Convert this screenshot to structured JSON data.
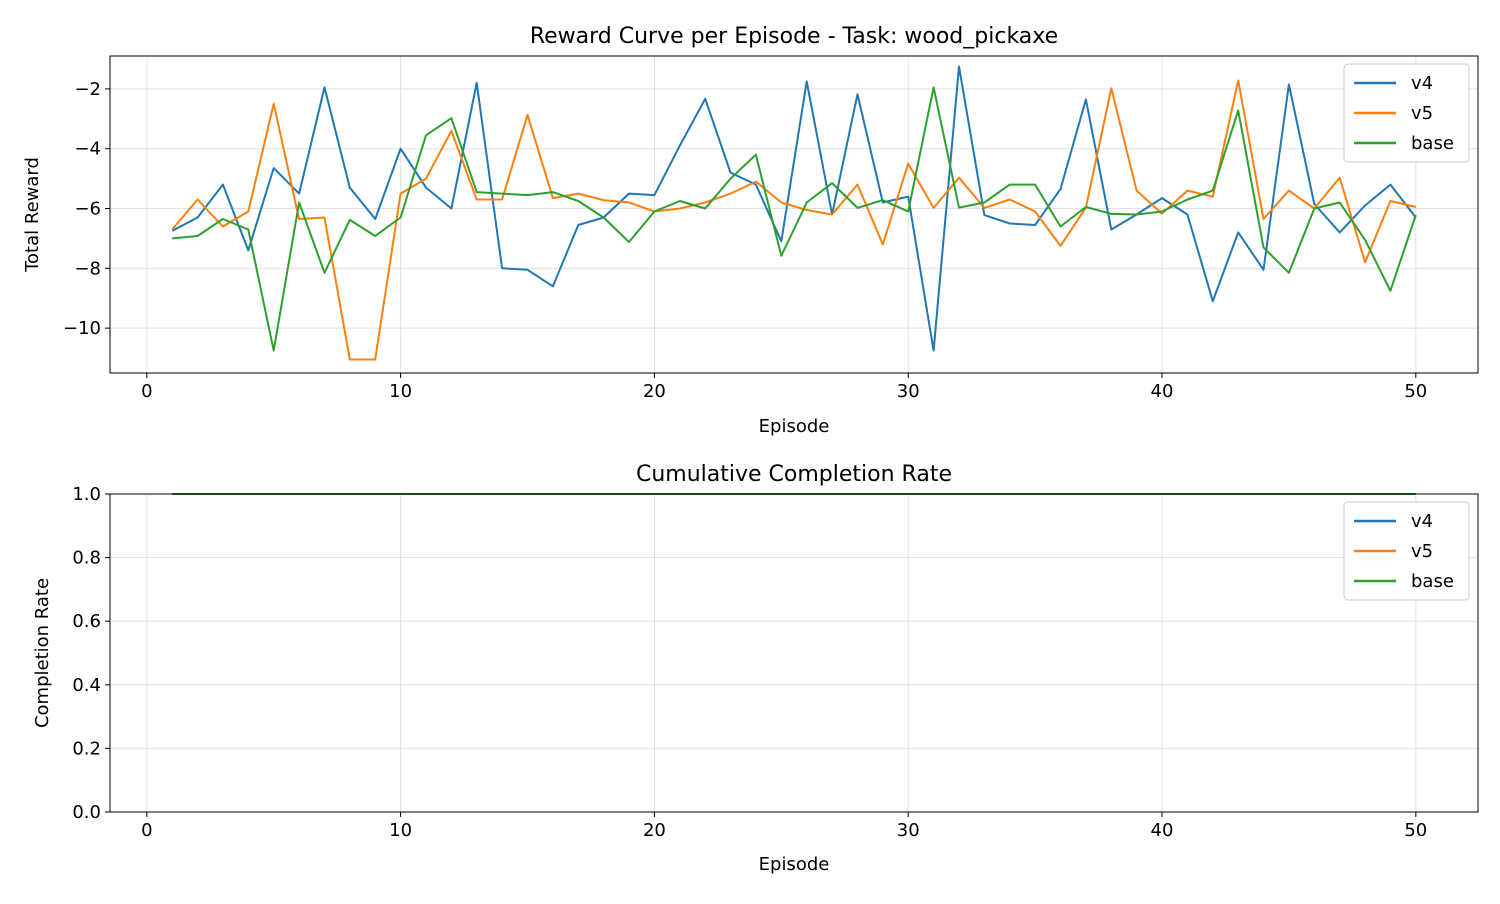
{
  "chart_data": [
    {
      "type": "line",
      "title": "Reward Curve per Episode - Task: wood_pickaxe",
      "xlabel": "Episode",
      "ylabel": "Total Reward",
      "xlim": [
        -1.45,
        52.45
      ],
      "ylim": [
        -11.5,
        -0.9
      ],
      "xticks": [
        0,
        10,
        20,
        30,
        40,
        50
      ],
      "yticks": [
        -10,
        -8,
        -6,
        -4,
        -2
      ],
      "ytick_labels": [
        "−10",
        "−8",
        "−6",
        "−4",
        "−2"
      ],
      "grid": true,
      "legend_position": "top-right",
      "x": [
        1,
        2,
        3,
        4,
        5,
        6,
        7,
        8,
        9,
        10,
        11,
        12,
        13,
        14,
        15,
        16,
        17,
        18,
        19,
        20,
        21,
        22,
        23,
        24,
        25,
        26,
        27,
        28,
        29,
        30,
        31,
        32,
        33,
        34,
        35,
        36,
        37,
        38,
        39,
        40,
        41,
        42,
        43,
        44,
        45,
        46,
        47,
        48,
        49,
        50
      ],
      "series": [
        {
          "name": "v4",
          "color": "#1f77b4",
          "values": [
            -6.75,
            -6.3,
            -5.2,
            -7.4,
            -4.65,
            -5.5,
            -1.95,
            -5.3,
            -6.35,
            -4.0,
            -5.3,
            -6.0,
            -1.8,
            -8.0,
            -8.05,
            -8.6,
            -6.55,
            -6.3,
            -5.5,
            -5.55,
            -3.9,
            -2.33,
            -4.8,
            -5.2,
            -7.1,
            -1.75,
            -6.2,
            -2.18,
            -5.8,
            -5.6,
            -10.75,
            -1.25,
            -6.22,
            -6.5,
            -6.55,
            -5.35,
            -2.35,
            -6.7,
            -6.2,
            -5.65,
            -6.2,
            -9.1,
            -6.8,
            -8.05,
            -1.85,
            -5.85,
            -6.8,
            -5.9,
            -5.2,
            -6.3
          ]
        },
        {
          "name": "v5",
          "color": "#ff7f0e",
          "values": [
            -6.7,
            -5.7,
            -6.6,
            -6.1,
            -2.5,
            -6.35,
            -6.3,
            -11.05,
            -11.05,
            -5.5,
            -5.0,
            -3.4,
            -5.7,
            -5.7,
            -2.87,
            -5.65,
            -5.5,
            -5.72,
            -5.8,
            -6.1,
            -6.0,
            -5.8,
            -5.5,
            -5.1,
            -5.8,
            -6.05,
            -6.2,
            -5.2,
            -7.2,
            -4.5,
            -5.98,
            -4.97,
            -5.98,
            -5.7,
            -6.1,
            -7.25,
            -5.97,
            -1.98,
            -5.4,
            -6.17,
            -5.4,
            -5.6,
            -1.72,
            -6.35,
            -5.4,
            -6.0,
            -4.97,
            -7.8,
            -5.75,
            -5.95
          ]
        },
        {
          "name": "base",
          "color": "#2ca02c",
          "values": [
            -7.0,
            -6.92,
            -6.35,
            -6.7,
            -10.75,
            -5.8,
            -8.15,
            -6.38,
            -6.92,
            -6.3,
            -3.55,
            -2.98,
            -5.45,
            -5.5,
            -5.55,
            -5.45,
            -5.75,
            -6.3,
            -7.12,
            -6.1,
            -5.75,
            -6.0,
            -5.0,
            -4.2,
            -7.58,
            -5.8,
            -5.15,
            -5.98,
            -5.72,
            -6.1,
            -1.95,
            -5.97,
            -5.8,
            -5.2,
            -5.2,
            -6.6,
            -5.95,
            -6.18,
            -6.2,
            -6.1,
            -5.7,
            -5.4,
            -2.72,
            -7.3,
            -8.15,
            -6.0,
            -5.8,
            -7.05,
            -8.75,
            -6.22
          ]
        }
      ]
    },
    {
      "type": "line",
      "title": "Cumulative Completion Rate",
      "xlabel": "Episode",
      "ylabel": "Completion Rate",
      "xlim": [
        -1.45,
        52.45
      ],
      "ylim": [
        0.0,
        1.0
      ],
      "xticks": [
        0,
        10,
        20,
        30,
        40,
        50
      ],
      "yticks": [
        0.0,
        0.2,
        0.4,
        0.6,
        0.8,
        1.0
      ],
      "ytick_labels": [
        "0.0",
        "0.2",
        "0.4",
        "0.6",
        "0.8",
        "1.0"
      ],
      "grid": true,
      "legend_position": "top-right",
      "x": [
        1,
        2,
        3,
        4,
        5,
        6,
        7,
        8,
        9,
        10,
        11,
        12,
        13,
        14,
        15,
        16,
        17,
        18,
        19,
        20,
        21,
        22,
        23,
        24,
        25,
        26,
        27,
        28,
        29,
        30,
        31,
        32,
        33,
        34,
        35,
        36,
        37,
        38,
        39,
        40,
        41,
        42,
        43,
        44,
        45,
        46,
        47,
        48,
        49,
        50
      ],
      "series": [
        {
          "name": "v4",
          "color": "#1f77b4",
          "values": [
            1,
            1,
            1,
            1,
            1,
            1,
            1,
            1,
            1,
            1,
            1,
            1,
            1,
            1,
            1,
            1,
            1,
            1,
            1,
            1,
            1,
            1,
            1,
            1,
            1,
            1,
            1,
            1,
            1,
            1,
            1,
            1,
            1,
            1,
            1,
            1,
            1,
            1,
            1,
            1,
            1,
            1,
            1,
            1,
            1,
            1,
            1,
            1,
            1,
            1
          ]
        },
        {
          "name": "v5",
          "color": "#ff7f0e",
          "values": [
            1,
            1,
            1,
            1,
            1,
            1,
            1,
            1,
            1,
            1,
            1,
            1,
            1,
            1,
            1,
            1,
            1,
            1,
            1,
            1,
            1,
            1,
            1,
            1,
            1,
            1,
            1,
            1,
            1,
            1,
            1,
            1,
            1,
            1,
            1,
            1,
            1,
            1,
            1,
            1,
            1,
            1,
            1,
            1,
            1,
            1,
            1,
            1,
            1,
            1
          ]
        },
        {
          "name": "base",
          "color": "#2ca02c",
          "values": [
            1,
            1,
            1,
            1,
            1,
            1,
            1,
            1,
            1,
            1,
            1,
            1,
            1,
            1,
            1,
            1,
            1,
            1,
            1,
            1,
            1,
            1,
            1,
            1,
            1,
            1,
            1,
            1,
            1,
            1,
            1,
            1,
            1,
            1,
            1,
            1,
            1,
            1,
            1,
            1,
            1,
            1,
            1,
            1,
            1,
            1,
            1,
            1,
            1,
            1
          ]
        }
      ]
    }
  ]
}
